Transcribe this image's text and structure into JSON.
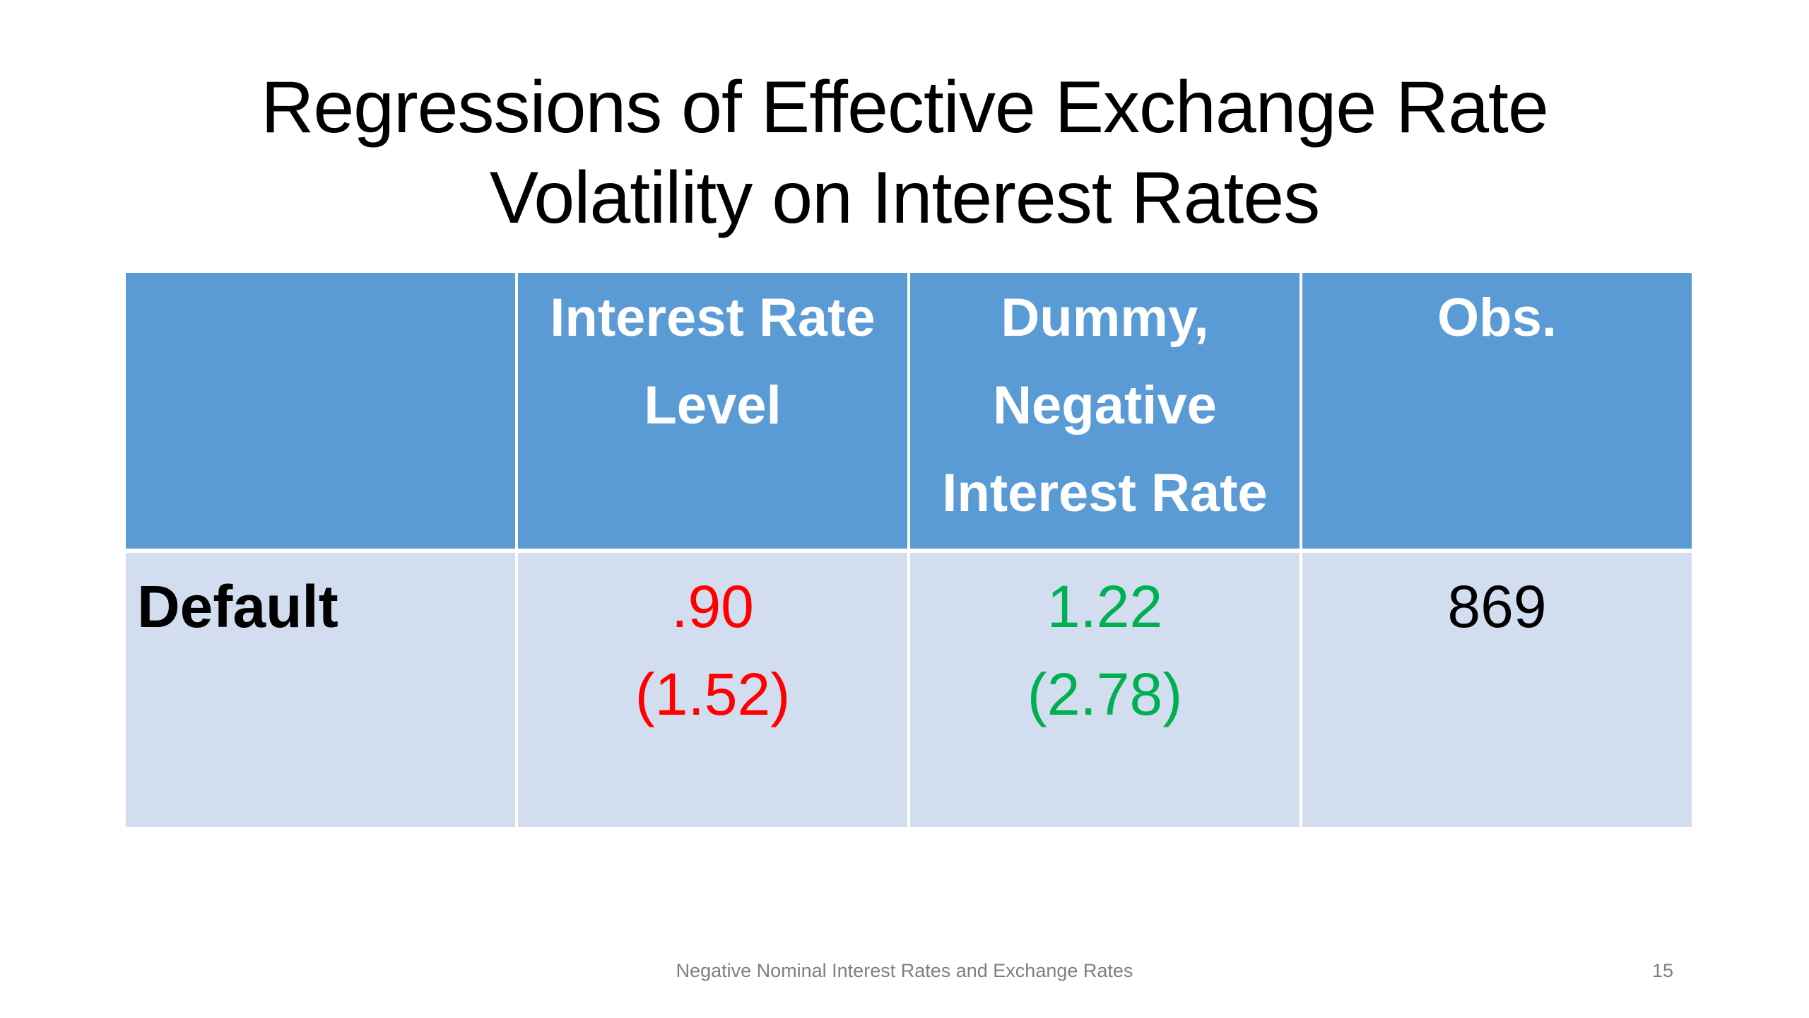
{
  "slide": {
    "title_line1": "Regressions of Effective Exchange Rate",
    "title_line2": "Volatility on Interest Rates",
    "footer": "Negative Nominal Interest Rates and Exchange Rates",
    "page_number": "15"
  },
  "table": {
    "header": {
      "col1": "",
      "col2_line1": "Interest Rate",
      "col2_line2": "Level",
      "col3_line1": "Dummy,",
      "col3_line2": "Negative",
      "col3_line3": "Interest Rate",
      "col4": "Obs."
    },
    "row": {
      "label": "Default",
      "interest_rate_level": ".90",
      "interest_rate_level_t": "(1.52)",
      "dummy_negative": "1.22",
      "dummy_negative_t": "(2.78)",
      "obs": "869"
    },
    "colors": {
      "header_bg": "#5b9bd5",
      "body_bg": "#d2deef",
      "red_text": "#ff0000",
      "green_text": "#00b050"
    }
  }
}
